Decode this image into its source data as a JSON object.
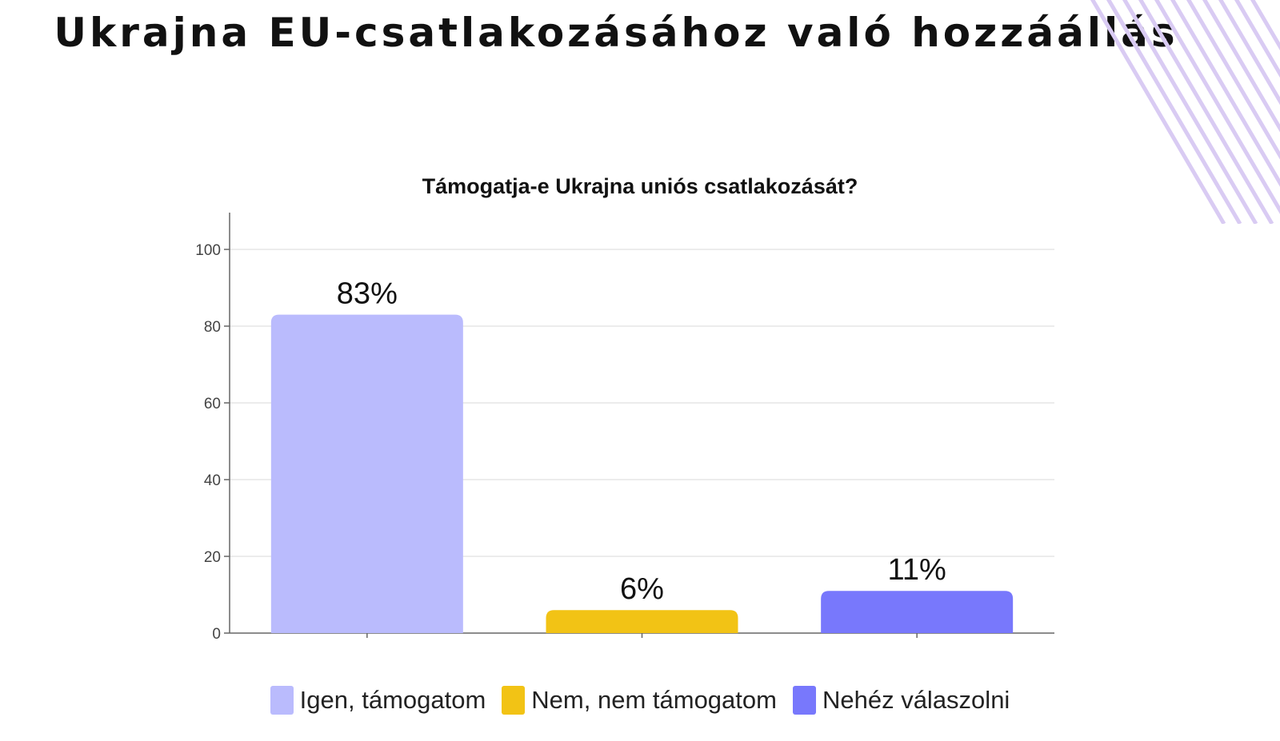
{
  "page": {
    "title": "Ukrajna EU-csatlakozásához való hozzáállás"
  },
  "decoration": {
    "stripe_color": "#d9cbf3"
  },
  "chart_data": {
    "type": "bar",
    "title": "Támogatja-e Ukrajna uniós csatlakozását?",
    "xlabel": "",
    "ylabel": "",
    "categories": [
      "Igen, támogatom",
      "Nem, nem támogatom",
      "Nehéz válaszolni"
    ],
    "values": [
      83,
      6,
      11
    ],
    "data_labels": [
      "83%",
      "6%",
      "11%"
    ],
    "colors": [
      "#babbfd",
      "#f2c315",
      "#7878fc"
    ],
    "ylim": [
      0,
      100
    ],
    "yticks": [
      0,
      20,
      40,
      60,
      80,
      100
    ],
    "ytick_labels": [
      "0",
      "20",
      "40",
      "60",
      "80",
      "100"
    ],
    "grid": true,
    "legend_position": "bottom-center"
  }
}
